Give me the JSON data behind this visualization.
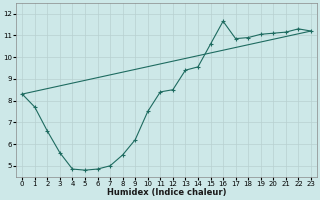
{
  "xlabel": "Humidex (Indice chaleur)",
  "bg_color": "#cde8e8",
  "grid_color": "#b8d0d0",
  "line_color": "#1e6b60",
  "xlim": [
    -0.5,
    23.5
  ],
  "ylim": [
    4.5,
    12.5
  ],
  "yticks": [
    5,
    6,
    7,
    8,
    9,
    10,
    11,
    12
  ],
  "xticks": [
    0,
    1,
    2,
    3,
    4,
    5,
    6,
    7,
    8,
    9,
    10,
    11,
    12,
    13,
    14,
    15,
    16,
    17,
    18,
    19,
    20,
    21,
    22,
    23
  ],
  "line1_x": [
    0,
    1,
    2,
    3,
    4,
    5,
    6,
    7,
    8,
    9,
    10,
    11,
    12,
    13,
    14,
    15,
    16,
    17,
    18,
    19,
    20,
    21,
    22,
    23
  ],
  "line1_y": [
    8.3,
    7.7,
    6.6,
    5.6,
    4.85,
    4.8,
    4.85,
    5.0,
    5.5,
    6.2,
    7.5,
    8.4,
    8.5,
    9.4,
    9.55,
    10.6,
    11.65,
    10.85,
    10.9,
    11.05,
    11.1,
    11.15,
    11.3,
    11.2
  ],
  "line2_x": [
    0,
    23
  ],
  "line2_y": [
    8.3,
    11.2
  ]
}
